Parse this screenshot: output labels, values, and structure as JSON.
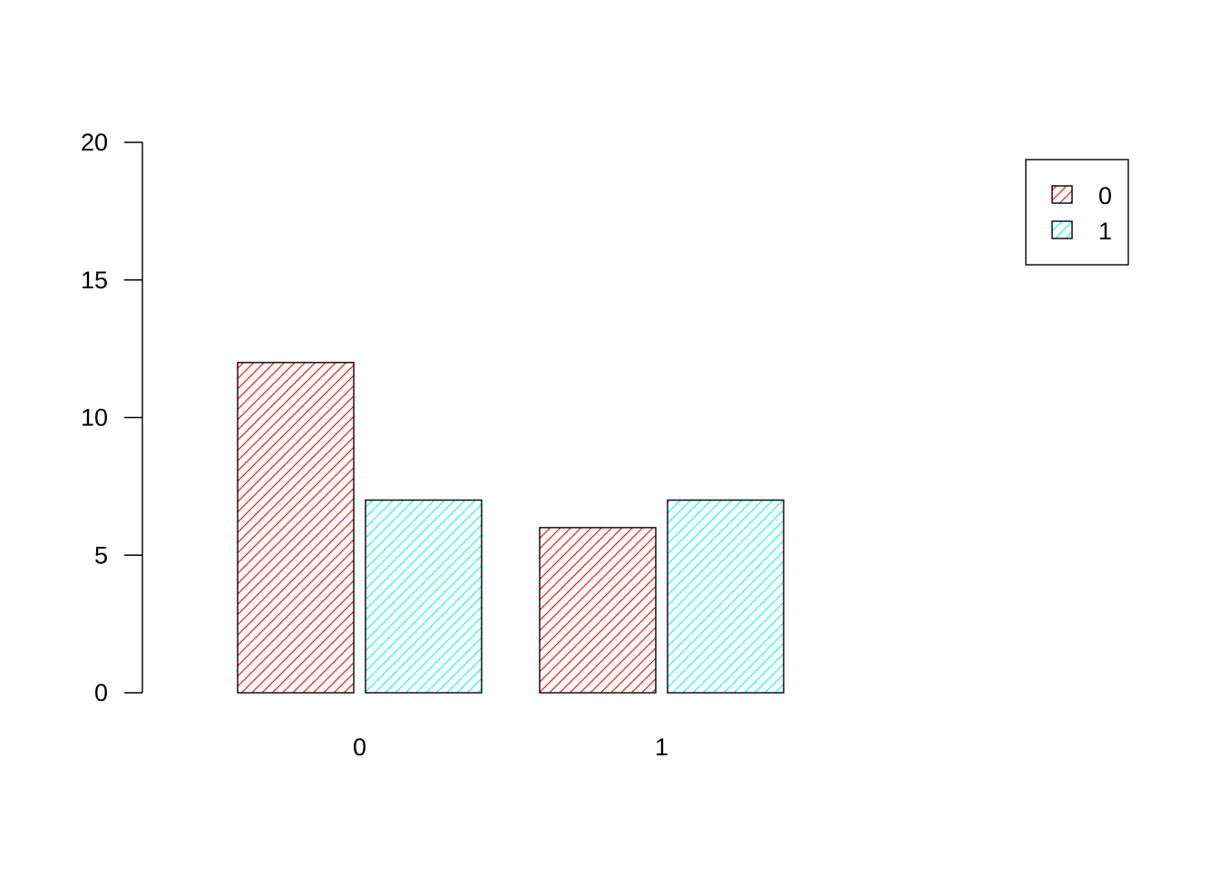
{
  "chart_data": {
    "type": "bar",
    "title": "",
    "xlabel": "",
    "ylabel": "",
    "categories": [
      "0",
      "1"
    ],
    "series": [
      {
        "name": "0",
        "values": [
          12,
          6
        ],
        "color": "#ff0000"
      },
      {
        "name": "1",
        "values": [
          7,
          7
        ],
        "color": "#00ffff"
      }
    ],
    "ylim": [
      0,
      20
    ],
    "yticks": [
      "0",
      "5",
      "10",
      "15",
      "20"
    ],
    "grid": false,
    "legend_position": "top-right",
    "bar_fill": "diagonal-hatch"
  }
}
